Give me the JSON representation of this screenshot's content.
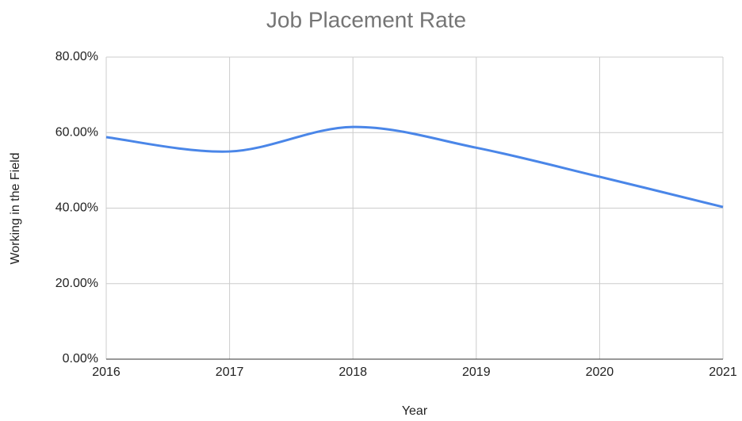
{
  "chart_data": {
    "type": "line",
    "title": "Job Placement Rate",
    "x_label": "Year",
    "y_label": "Working in the Field",
    "x": [
      2016,
      2017,
      2018,
      2019,
      2020,
      2021
    ],
    "series": [
      {
        "name": "Working in the Field",
        "color": "#4a86e8",
        "values": [
          58.8,
          55.0,
          61.5,
          56.0,
          48.3,
          40.3
        ]
      }
    ],
    "xlim": [
      2016,
      2021
    ],
    "xticks": [
      2016,
      2017,
      2018,
      2019,
      2020,
      2021
    ],
    "ylim": [
      0,
      80
    ],
    "yticks": [
      {
        "value": 0,
        "label": "0.00%"
      },
      {
        "value": 20,
        "label": "20.00%"
      },
      {
        "value": 40,
        "label": "40.00%"
      },
      {
        "value": 60,
        "label": "60.00%"
      },
      {
        "value": 80,
        "label": "80.00%"
      }
    ],
    "grid": true,
    "smooth": true
  }
}
